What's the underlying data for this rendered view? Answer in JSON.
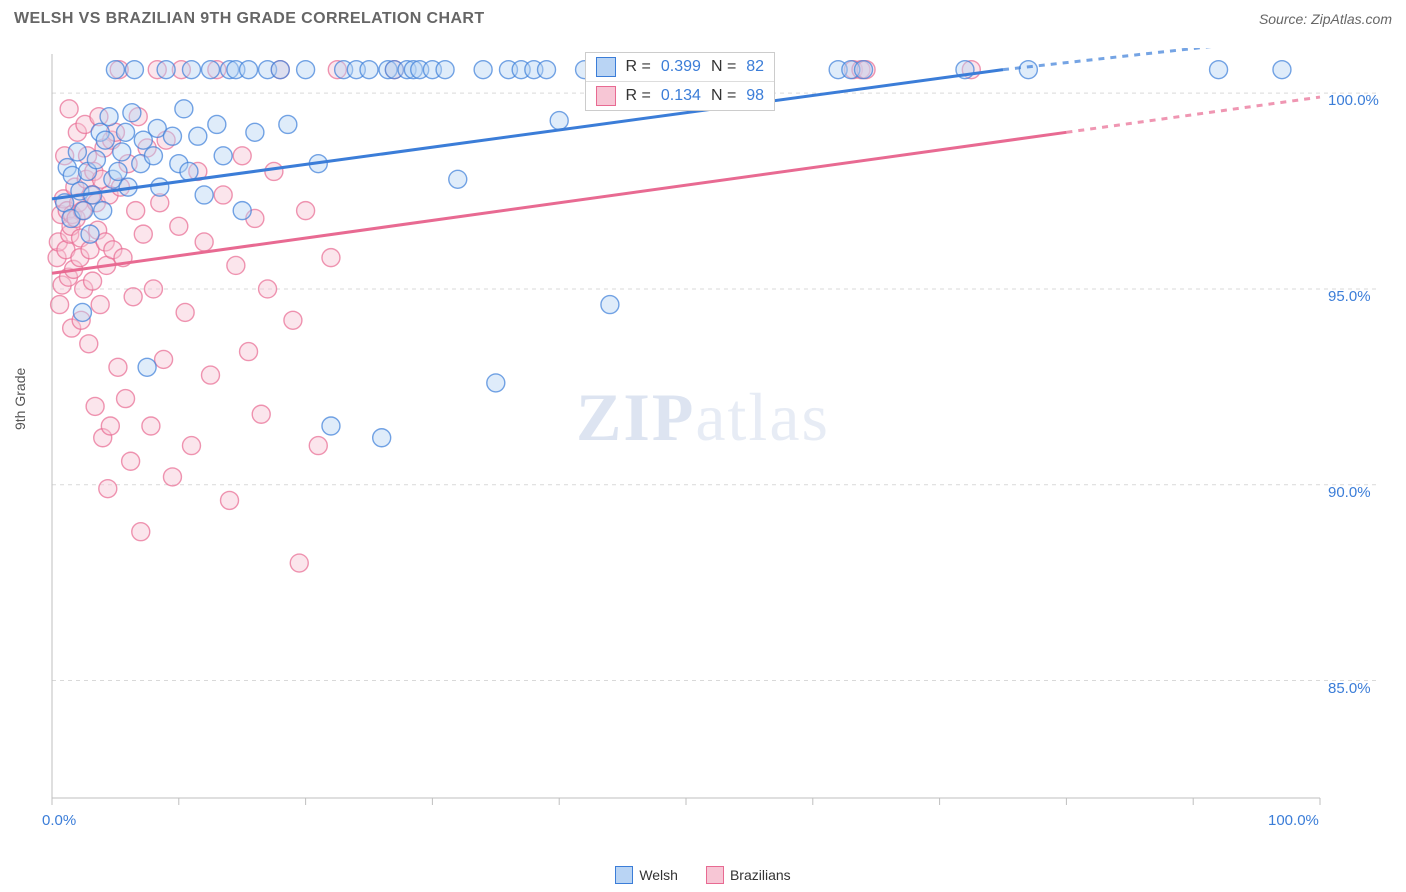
{
  "title": "WELSH VS BRAZILIAN 9TH GRADE CORRELATION CHART",
  "source": "Source: ZipAtlas.com",
  "ylabel": "9th Grade",
  "watermark_bold": "ZIP",
  "watermark_rest": "atlas",
  "legend": {
    "series": [
      {
        "label": "Welsh",
        "fill": "#b9d4f4",
        "stroke": "#3b7dd8"
      },
      {
        "label": "Brazilians",
        "fill": "#f7c6d5",
        "stroke": "#e86a92"
      }
    ]
  },
  "correlation": {
    "rows": [
      {
        "fill": "#b9d4f4",
        "stroke": "#3b7dd8",
        "r_label": "R =",
        "r": "0.399",
        "n_label": "N =",
        "n": "82"
      },
      {
        "fill": "#f7c6d5",
        "stroke": "#e86a92",
        "r_label": "R =",
        "r": "0.134",
        "n_label": "N =",
        "n": "98"
      }
    ]
  },
  "chart": {
    "type": "scatter",
    "xlim": [
      0,
      100
    ],
    "ylim": [
      82,
      101
    ],
    "x_ticks_minor": [
      0,
      10,
      20,
      30,
      40,
      50,
      60,
      70,
      80,
      90,
      100
    ],
    "y_gridlines": [
      85,
      90,
      95,
      100
    ],
    "y_tick_labels": [
      "85.0%",
      "90.0%",
      "95.0%",
      "100.0%"
    ],
    "x_labels": [
      {
        "x": 0,
        "text": "0.0%"
      },
      {
        "x": 100,
        "text": "100.0%"
      }
    ],
    "plot_bg": "#ffffff",
    "grid_color": "#d9d9d9",
    "axis_color": "#bfbfbf",
    "marker_radius": 9,
    "marker_opacity": 0.45,
    "line_width": 3,
    "series": [
      {
        "name": "welsh",
        "color_fill": "#b9d4f4",
        "color_stroke": "#3b7dd8",
        "trend": {
          "x1": 0,
          "y1": 97.3,
          "x2": 75,
          "y2": 100.6,
          "dash_x1": 75,
          "dash_y1": 100.6,
          "dash_x2": 100,
          "dash_y2": 101.5
        },
        "points": [
          [
            1,
            97.2
          ],
          [
            1.2,
            98.1
          ],
          [
            1.5,
            96.8
          ],
          [
            1.6,
            97.9
          ],
          [
            2,
            98.5
          ],
          [
            2.2,
            97.5
          ],
          [
            2.4,
            94.4
          ],
          [
            2.5,
            97.0
          ],
          [
            2.8,
            98.0
          ],
          [
            3,
            96.4
          ],
          [
            3.2,
            97.4
          ],
          [
            3.5,
            98.3
          ],
          [
            3.8,
            99.0
          ],
          [
            4,
            97.0
          ],
          [
            4.2,
            98.8
          ],
          [
            4.5,
            99.4
          ],
          [
            4.8,
            97.8
          ],
          [
            5,
            100.6
          ],
          [
            5.2,
            98.0
          ],
          [
            5.5,
            98.5
          ],
          [
            5.8,
            99.0
          ],
          [
            6,
            97.6
          ],
          [
            6.3,
            99.5
          ],
          [
            6.5,
            100.6
          ],
          [
            7,
            98.2
          ],
          [
            7.2,
            98.8
          ],
          [
            7.5,
            93.0
          ],
          [
            8,
            98.4
          ],
          [
            8.3,
            99.1
          ],
          [
            8.5,
            97.6
          ],
          [
            9,
            100.6
          ],
          [
            9.5,
            98.9
          ],
          [
            10,
            98.2
          ],
          [
            10.4,
            99.6
          ],
          [
            10.8,
            98.0
          ],
          [
            11,
            100.6
          ],
          [
            11.5,
            98.9
          ],
          [
            12,
            97.4
          ],
          [
            12.5,
            100.6
          ],
          [
            13,
            99.2
          ],
          [
            13.5,
            98.4
          ],
          [
            14,
            100.6
          ],
          [
            14.5,
            100.6
          ],
          [
            15,
            97.0
          ],
          [
            15.5,
            100.6
          ],
          [
            16,
            99.0
          ],
          [
            17,
            100.6
          ],
          [
            18,
            100.6
          ],
          [
            18.6,
            99.2
          ],
          [
            20,
            100.6
          ],
          [
            21,
            98.2
          ],
          [
            22,
            91.5
          ],
          [
            23,
            100.6
          ],
          [
            24,
            100.6
          ],
          [
            25,
            100.6
          ],
          [
            26,
            91.2
          ],
          [
            26.5,
            100.6
          ],
          [
            27,
            100.6
          ],
          [
            28,
            100.6
          ],
          [
            28.5,
            100.6
          ],
          [
            29,
            100.6
          ],
          [
            30,
            100.6
          ],
          [
            31,
            100.6
          ],
          [
            32,
            97.8
          ],
          [
            34,
            100.6
          ],
          [
            35,
            92.6
          ],
          [
            36,
            100.6
          ],
          [
            37,
            100.6
          ],
          [
            38,
            100.6
          ],
          [
            39,
            100.6
          ],
          [
            40,
            99.3
          ],
          [
            42,
            100.6
          ],
          [
            43,
            100.6
          ],
          [
            44,
            94.6
          ],
          [
            46,
            100.6
          ],
          [
            62,
            100.6
          ],
          [
            63,
            100.6
          ],
          [
            64,
            100.6
          ],
          [
            72,
            100.6
          ],
          [
            77,
            100.6
          ],
          [
            92,
            100.6
          ],
          [
            97,
            100.6
          ]
        ]
      },
      {
        "name": "brazilians",
        "color_fill": "#f7c6d5",
        "color_stroke": "#e86a92",
        "trend": {
          "x1": 0,
          "y1": 95.4,
          "x2": 80,
          "y2": 99.0,
          "dash_x1": 80,
          "dash_y1": 99.0,
          "dash_x2": 100,
          "dash_y2": 99.9
        },
        "points": [
          [
            0.4,
            95.8
          ],
          [
            0.5,
            96.2
          ],
          [
            0.6,
            94.6
          ],
          [
            0.7,
            96.9
          ],
          [
            0.8,
            95.1
          ],
          [
            0.9,
            97.3
          ],
          [
            1.0,
            98.4
          ],
          [
            1.1,
            96.0
          ],
          [
            1.2,
            97.0
          ],
          [
            1.3,
            95.3
          ],
          [
            1.35,
            99.6
          ],
          [
            1.4,
            96.4
          ],
          [
            1.5,
            96.6
          ],
          [
            1.55,
            94.0
          ],
          [
            1.6,
            96.9
          ],
          [
            1.7,
            95.5
          ],
          [
            1.8,
            97.6
          ],
          [
            1.9,
            96.8
          ],
          [
            2.0,
            99.0
          ],
          [
            2.1,
            97.2
          ],
          [
            2.2,
            95.8
          ],
          [
            2.25,
            96.3
          ],
          [
            2.3,
            94.2
          ],
          [
            2.4,
            97.0
          ],
          [
            2.5,
            95.0
          ],
          [
            2.6,
            99.2
          ],
          [
            2.7,
            97.8
          ],
          [
            2.8,
            98.4
          ],
          [
            2.9,
            93.6
          ],
          [
            3.0,
            96.0
          ],
          [
            3.1,
            97.4
          ],
          [
            3.2,
            95.2
          ],
          [
            3.3,
            98.0
          ],
          [
            3.4,
            92.0
          ],
          [
            3.5,
            97.2
          ],
          [
            3.6,
            96.5
          ],
          [
            3.7,
            99.4
          ],
          [
            3.8,
            94.6
          ],
          [
            3.9,
            97.8
          ],
          [
            4.0,
            91.2
          ],
          [
            4.1,
            98.6
          ],
          [
            4.2,
            96.2
          ],
          [
            4.3,
            95.6
          ],
          [
            4.4,
            89.9
          ],
          [
            4.5,
            97.4
          ],
          [
            4.6,
            91.5
          ],
          [
            4.7,
            98.8
          ],
          [
            4.8,
            96.0
          ],
          [
            5.0,
            99.0
          ],
          [
            5.2,
            93.0
          ],
          [
            5.3,
            100.6
          ],
          [
            5.4,
            97.6
          ],
          [
            5.6,
            95.8
          ],
          [
            5.8,
            92.2
          ],
          [
            6.0,
            98.2
          ],
          [
            6.2,
            90.6
          ],
          [
            6.4,
            94.8
          ],
          [
            6.6,
            97.0
          ],
          [
            6.8,
            99.4
          ],
          [
            7.0,
            88.8
          ],
          [
            7.2,
            96.4
          ],
          [
            7.5,
            98.6
          ],
          [
            7.8,
            91.5
          ],
          [
            8.0,
            95.0
          ],
          [
            8.3,
            100.6
          ],
          [
            8.5,
            97.2
          ],
          [
            8.8,
            93.2
          ],
          [
            9.0,
            98.8
          ],
          [
            9.5,
            90.2
          ],
          [
            10.0,
            96.6
          ],
          [
            10.2,
            100.6
          ],
          [
            10.5,
            94.4
          ],
          [
            11.0,
            91.0
          ],
          [
            11.5,
            98.0
          ],
          [
            12.0,
            96.2
          ],
          [
            12.5,
            92.8
          ],
          [
            13.0,
            100.6
          ],
          [
            13.5,
            97.4
          ],
          [
            14.0,
            89.6
          ],
          [
            14.5,
            95.6
          ],
          [
            15.0,
            98.4
          ],
          [
            15.5,
            93.4
          ],
          [
            16.0,
            96.8
          ],
          [
            16.5,
            91.8
          ],
          [
            17.0,
            95.0
          ],
          [
            17.5,
            98.0
          ],
          [
            18.0,
            100.6
          ],
          [
            19.0,
            94.2
          ],
          [
            19.5,
            88.0
          ],
          [
            20.0,
            97.0
          ],
          [
            21.0,
            91.0
          ],
          [
            22.0,
            95.8
          ],
          [
            22.5,
            100.6
          ],
          [
            27.0,
            100.6
          ],
          [
            63.2,
            100.6
          ],
          [
            63.8,
            100.6
          ],
          [
            64.2,
            100.6
          ],
          [
            72.5,
            100.6
          ]
        ]
      }
    ]
  }
}
